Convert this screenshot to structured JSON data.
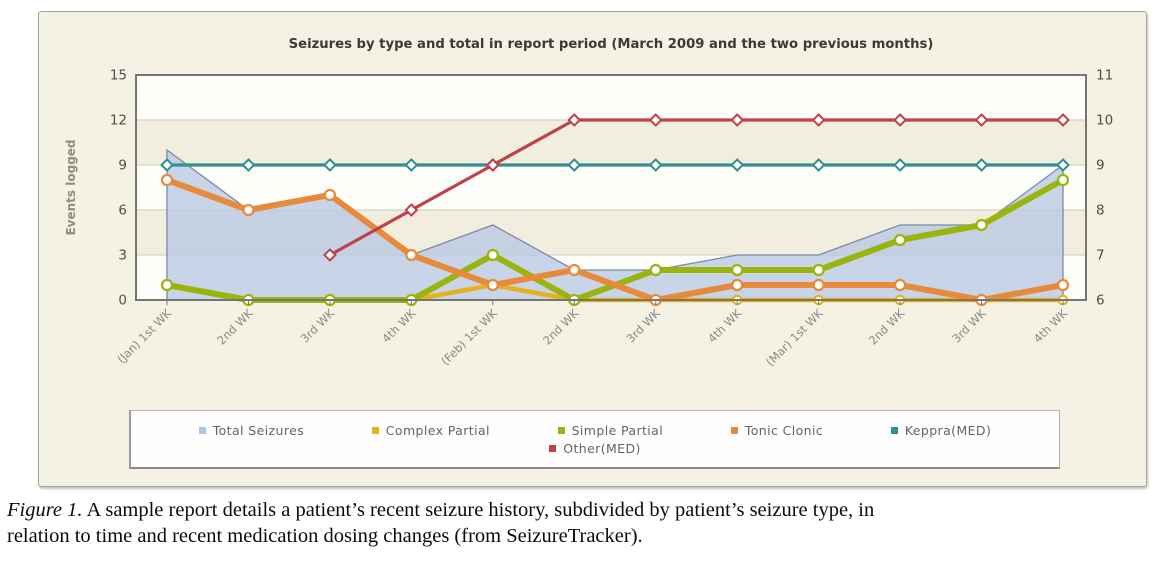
{
  "chart_data": {
    "type": "line",
    "title": "Seizures by type and total in report period (March 2009 and the two previous months)",
    "categories": [
      "(Jan) 1st WK",
      "2nd WK",
      "3rd WK",
      "4th WK",
      "(Feb) 1st WK",
      "2nd WK",
      "3rd WK",
      "4th WK",
      "(Mar) 1st WK",
      "2nd WK",
      "3rd WK",
      "4th WK"
    ],
    "ylabel_left": "Events logged",
    "ylim_left": [
      0,
      15
    ],
    "yticks_left": [
      0,
      3,
      6,
      9,
      12,
      15
    ],
    "ylim_right": [
      6,
      11
    ],
    "yticks_right": [
      6,
      7,
      8,
      9,
      10,
      11
    ],
    "grid": true,
    "legend_position": "bottom",
    "series": [
      {
        "name": "Total Seizures",
        "axis": "left",
        "style": "area",
        "color": "#a9c7e8",
        "line_color": "#7b89a4",
        "marker": "none",
        "values": [
          10,
          6,
          7,
          3,
          5,
          2,
          2,
          3,
          3,
          5,
          5,
          9
        ]
      },
      {
        "name": "Complex Partial",
        "axis": "left",
        "style": "line",
        "color": "#e5b11d",
        "marker": "circle",
        "values": [
          1,
          0,
          0,
          0,
          1,
          0,
          0,
          0,
          0,
          0,
          0,
          0
        ]
      },
      {
        "name": "Simple Partial",
        "axis": "left",
        "style": "line",
        "color": "#9ab40e",
        "marker": "circle",
        "values": [
          1,
          0,
          0,
          0,
          3,
          0,
          2,
          2,
          2,
          4,
          5,
          8
        ]
      },
      {
        "name": "Tonic Clonic",
        "axis": "left",
        "style": "line",
        "color": "#e78a3b",
        "marker": "circle",
        "values": [
          8,
          6,
          7,
          3,
          1,
          2,
          0,
          1,
          1,
          1,
          0,
          1
        ]
      },
      {
        "name": "Keppra(MED)",
        "axis": "right",
        "style": "line",
        "color": "#318f8d",
        "marker": "diamond",
        "values": [
          9,
          9,
          9,
          9,
          9,
          9,
          9,
          9,
          9,
          9,
          9,
          9
        ]
      },
      {
        "name": "Other(MED)",
        "axis": "right",
        "style": "line",
        "color": "#c04149",
        "marker": "diamond",
        "values": [
          null,
          null,
          7,
          8,
          9,
          10,
          10,
          10,
          10,
          10,
          10,
          10
        ]
      }
    ],
    "legend_rows": [
      [
        0,
        1,
        2,
        3,
        4
      ],
      [
        5
      ]
    ]
  },
  "caption": {
    "label": "Figure 1.",
    "line1": " A sample report details a patient’s recent seizure history, subdivided by patient’s seizure type, in",
    "line2": "relation to time and recent medication dosing changes (from SeizureTracker)."
  }
}
